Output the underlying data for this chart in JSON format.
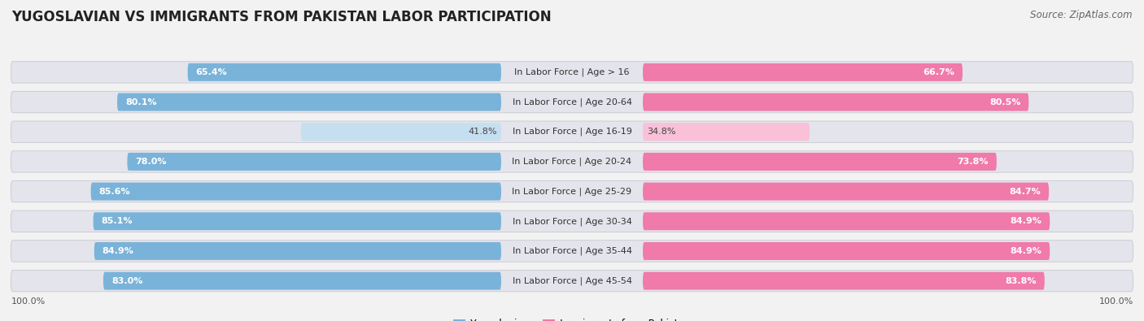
{
  "title": "YUGOSLAVIAN VS IMMIGRANTS FROM PAKISTAN LABOR PARTICIPATION",
  "source": "Source: ZipAtlas.com",
  "categories": [
    "In Labor Force | Age > 16",
    "In Labor Force | Age 20-64",
    "In Labor Force | Age 16-19",
    "In Labor Force | Age 20-24",
    "In Labor Force | Age 25-29",
    "In Labor Force | Age 30-34",
    "In Labor Force | Age 35-44",
    "In Labor Force | Age 45-54"
  ],
  "yugoslavian": [
    65.4,
    80.1,
    41.8,
    78.0,
    85.6,
    85.1,
    84.9,
    83.0
  ],
  "pakistan": [
    66.7,
    80.5,
    34.8,
    73.8,
    84.7,
    84.9,
    84.9,
    83.8
  ],
  "yug_color": "#7ab3d9",
  "yug_color_light": "#c5dff0",
  "pak_color": "#f07aaa",
  "pak_color_light": "#f9c0d8",
  "bg_color": "#f2f2f2",
  "row_bg": "#e4e4ec",
  "title_fontsize": 12,
  "source_fontsize": 8.5,
  "label_fontsize": 8,
  "value_fontsize": 8,
  "legend_fontsize": 9,
  "footer_fontsize": 8
}
